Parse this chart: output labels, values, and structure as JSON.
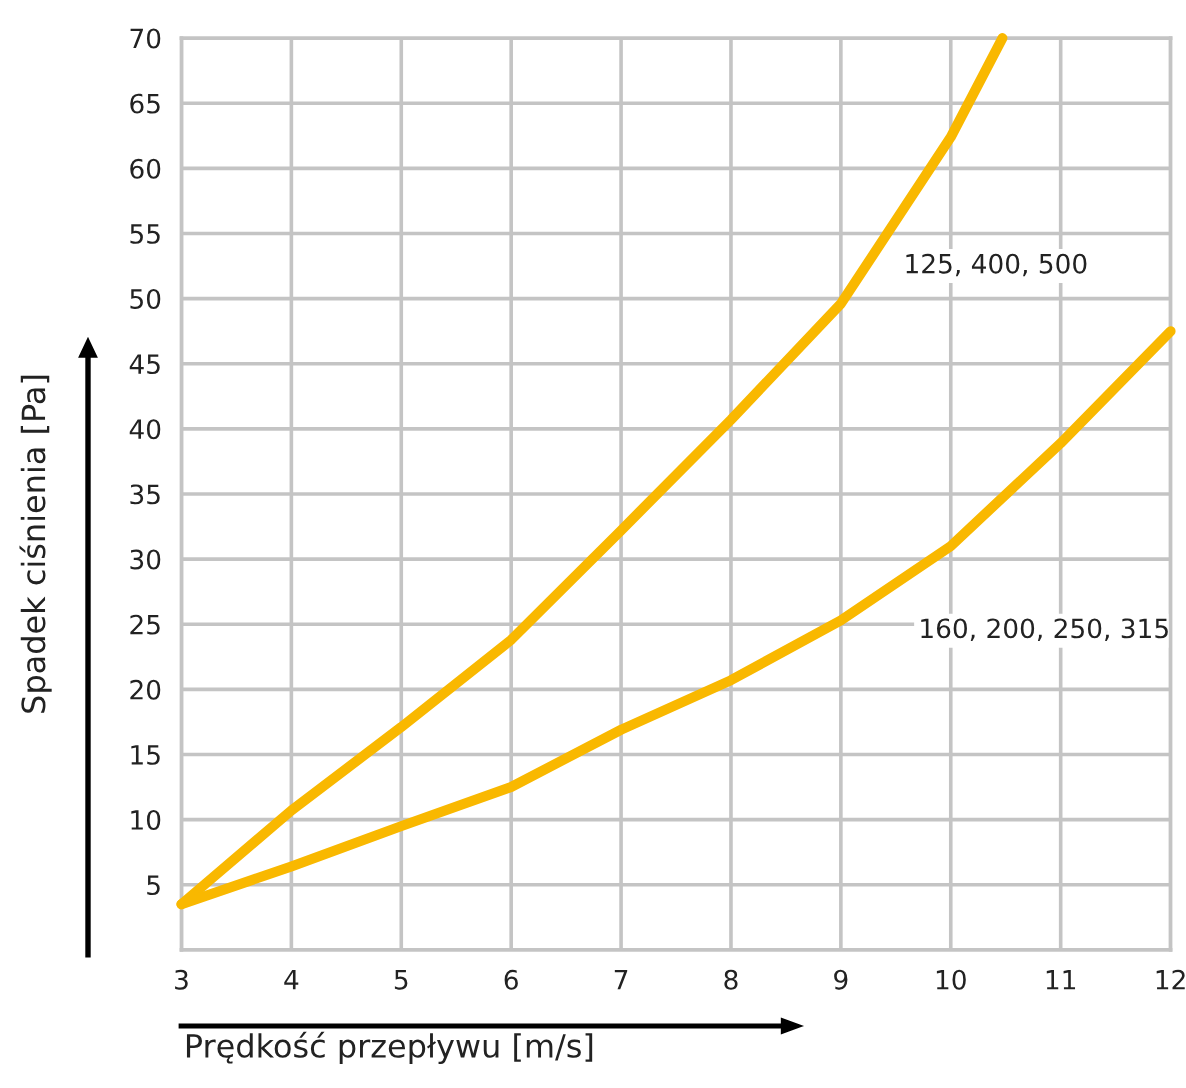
{
  "chart_data": {
    "type": "line",
    "xlabel": "Prędkość przepływu [m/s]",
    "ylabel": "Spadek ciśnienia [Pa]",
    "x": [
      3,
      4,
      5,
      6,
      7,
      8,
      9,
      10,
      10.47
    ],
    "series": [
      {
        "name": "125, 400, 500",
        "color": "#f9b800",
        "values": [
          3.5,
          10.7,
          17.1,
          23.8,
          32.2,
          40.7,
          49.6,
          62.4,
          70
        ]
      },
      {
        "name": "160, 200, 250, 315",
        "color": "#f9b800",
        "x": [
          3,
          4,
          5,
          6,
          7,
          8,
          9,
          10,
          11,
          12
        ],
        "values": [
          3.5,
          6.4,
          9.5,
          12.5,
          16.9,
          20.7,
          25.3,
          31.0,
          38.9,
          47.5
        ]
      }
    ],
    "xlim": [
      3,
      12
    ],
    "xticks": [
      3,
      4,
      5,
      6,
      7,
      8,
      9,
      10,
      11,
      12
    ],
    "ylim": [
      0,
      70
    ],
    "yticks": [
      5,
      10,
      15,
      20,
      25,
      30,
      35,
      40,
      45,
      50,
      55,
      60,
      65,
      70
    ],
    "grid": true,
    "legend": false,
    "marker": "none",
    "line_style": "solid"
  }
}
